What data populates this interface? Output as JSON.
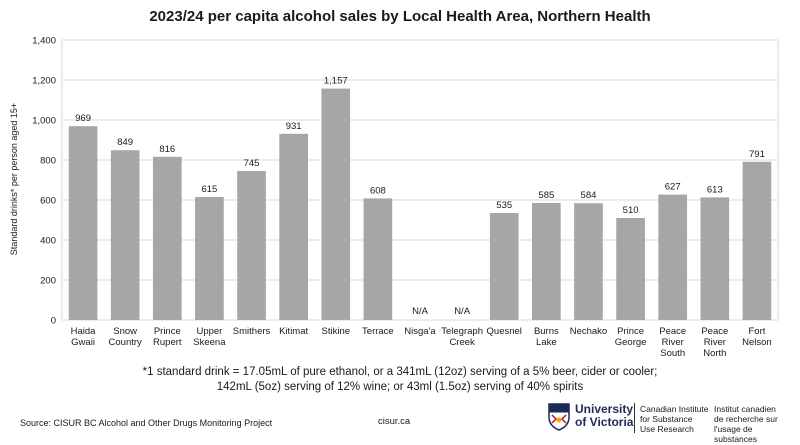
{
  "chart_data": {
    "type": "bar",
    "title": "2023/24 per capita alcohol sales by Local Health Area, Northern Health",
    "ylabel": "Standard drinks* per person aged 15+",
    "ylim": [
      0,
      1400
    ],
    "yticks": [
      "0",
      "200",
      "400",
      "600",
      "800",
      "1,000",
      "1,200",
      "1,400"
    ],
    "ytick_values": [
      0,
      200,
      400,
      600,
      800,
      1000,
      1200,
      1400
    ],
    "grid": true,
    "bar_color": "#a6a6a6",
    "categories": [
      [
        "Haida",
        "Gwaii"
      ],
      [
        "Snow",
        "Country"
      ],
      [
        "Prince",
        "Rupert"
      ],
      [
        "Upper",
        "Skeena"
      ],
      [
        "Smithers"
      ],
      [
        "Kitimat"
      ],
      [
        "Stikine"
      ],
      [
        "Terrace"
      ],
      [
        "Nisga'a"
      ],
      [
        "Telegraph",
        "Creek"
      ],
      [
        "Quesnel"
      ],
      [
        "Burns",
        "Lake"
      ],
      [
        "Nechako"
      ],
      [
        "Prince",
        "George"
      ],
      [
        "Peace",
        "River",
        "South"
      ],
      [
        "Peace",
        "River",
        "North"
      ],
      [
        "Fort",
        "Nelson"
      ]
    ],
    "values": [
      969,
      849,
      816,
      615,
      745,
      931,
      1157,
      608,
      null,
      null,
      535,
      585,
      584,
      510,
      627,
      613,
      791
    ],
    "data_labels": [
      "969",
      "849",
      "816",
      "615",
      "745",
      "931",
      "1,157",
      "608",
      "N/A",
      "N/A",
      "535",
      "585",
      "584",
      "510",
      "627",
      "613",
      "791"
    ]
  },
  "footnote": {
    "line1": "*1 standard drink = 17.05mL of pure ethanol, or a 341mL (12oz) serving of a 5% beer, cider or cooler;",
    "line2": "142mL (5oz) serving of 12% wine; or 43ml (1.5oz) serving of 40% spirits"
  },
  "source": "Source: CISUR BC Alcohol and Other Drugs Monitoring Project",
  "website": "cisur.ca",
  "logo": {
    "university_line1": "University",
    "university_line2": "of Victoria",
    "en_line1": "Canadian Institute",
    "en_line2": "for Substance",
    "en_line3": "Use Research",
    "fr_line1": "Institut canadien",
    "fr_line2": "de recherche sur",
    "fr_line3": "l'usage de substances"
  }
}
